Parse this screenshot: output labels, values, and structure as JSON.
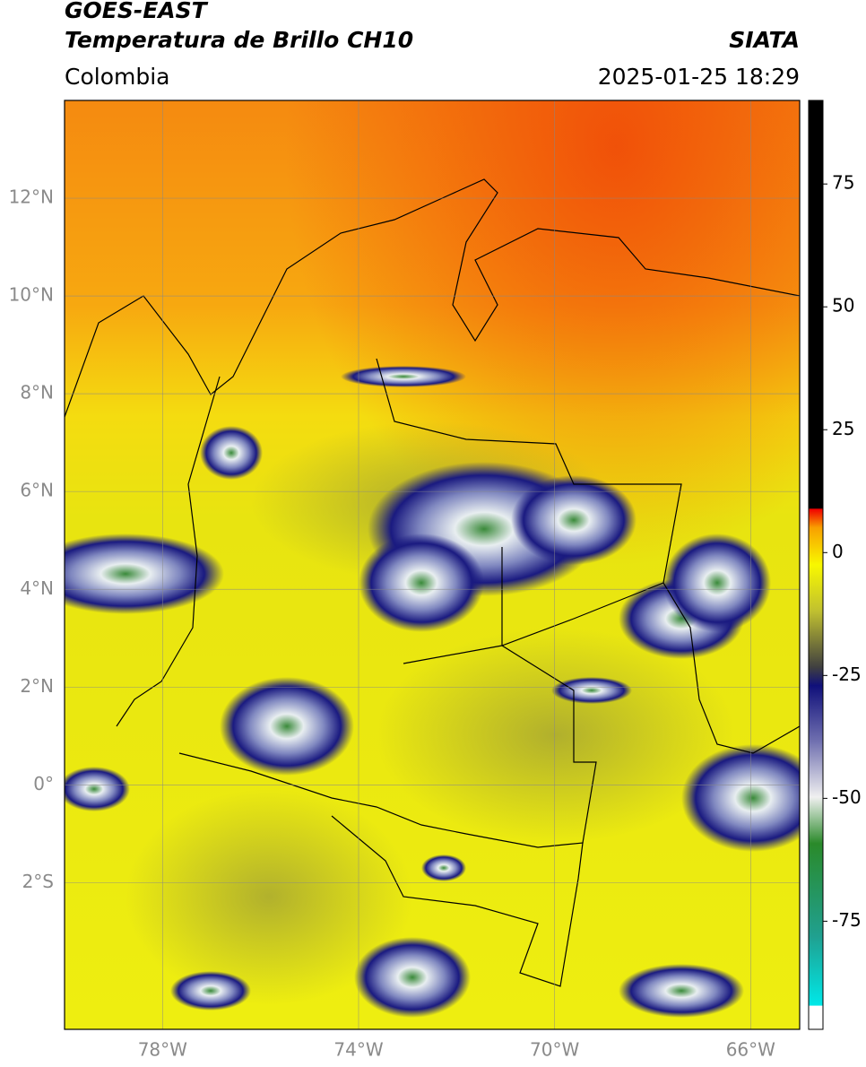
{
  "header": {
    "title": "GOES-EAST",
    "subtitle": "Temperatura de Brillo CH10",
    "source": "SIATA",
    "region": "Colombia",
    "timestamp": "2025-01-25 18:29"
  },
  "map": {
    "xlim": [
      -80,
      -65
    ],
    "ylim": [
      -5,
      14
    ],
    "xticks": [
      {
        "value": -78,
        "label": "78°W"
      },
      {
        "value": -74,
        "label": "74°W"
      },
      {
        "value": -70,
        "label": "70°W"
      },
      {
        "value": -66,
        "label": "66°W"
      }
    ],
    "yticks": [
      {
        "value": 12,
        "label": "12°N"
      },
      {
        "value": 10,
        "label": "10°N"
      },
      {
        "value": 8,
        "label": "8°N"
      },
      {
        "value": 6,
        "label": "6°N"
      },
      {
        "value": 4,
        "label": "4°N"
      },
      {
        "value": 2,
        "label": "2°N"
      },
      {
        "value": 0,
        "label": "0°"
      },
      {
        "value": -2,
        "label": "2°S"
      }
    ],
    "grid": true
  },
  "colorbar": {
    "lim": [
      -97,
      92
    ],
    "ticks": [
      75,
      50,
      25,
      0,
      -25,
      -50,
      -75
    ]
  }
}
